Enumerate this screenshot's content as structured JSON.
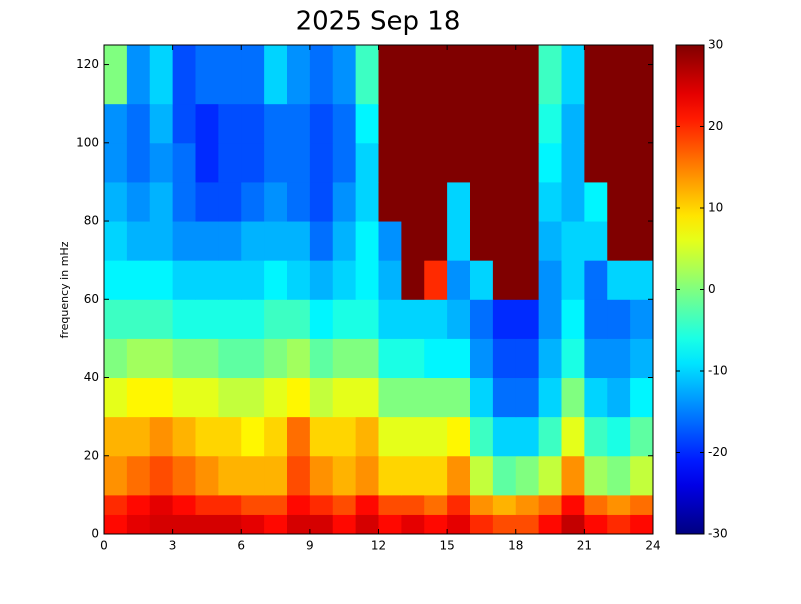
{
  "chart_data": {
    "type": "heatmap",
    "title": "2025 Sep 18",
    "ylabel": "frequency in mHz",
    "colormap": "jet",
    "x_bins": [
      0,
      1,
      2,
      3,
      4,
      5,
      6,
      7,
      8,
      9,
      10,
      11,
      12,
      13,
      14,
      15,
      16,
      17,
      18,
      19,
      20,
      21,
      22,
      23,
      24
    ],
    "y_bins": [
      0,
      5,
      10,
      20,
      30,
      40,
      50,
      60,
      70,
      80,
      90,
      100,
      110,
      125
    ],
    "z": [
      [
        22,
        24,
        25,
        25,
        25,
        25,
        24,
        22,
        25,
        25,
        22,
        25,
        22,
        24,
        22,
        24,
        20,
        18,
        18,
        22,
        26,
        22,
        20,
        22
      ],
      [
        20,
        22,
        24,
        22,
        20,
        20,
        18,
        18,
        22,
        20,
        18,
        22,
        18,
        18,
        16,
        20,
        14,
        12,
        14,
        16,
        22,
        16,
        14,
        16
      ],
      [
        14,
        16,
        18,
        16,
        14,
        12,
        12,
        12,
        18,
        14,
        12,
        14,
        10,
        10,
        10,
        14,
        4,
        -2,
        0,
        4,
        14,
        2,
        0,
        4
      ],
      [
        12,
        12,
        14,
        12,
        10,
        10,
        8,
        10,
        16,
        10,
        10,
        12,
        6,
        6,
        6,
        8,
        -4,
        -10,
        -10,
        -4,
        6,
        -4,
        -6,
        -2
      ],
      [
        6,
        8,
        8,
        6,
        6,
        4,
        4,
        6,
        8,
        4,
        6,
        6,
        0,
        0,
        0,
        0,
        -10,
        -16,
        -16,
        -10,
        0,
        -10,
        -12,
        -8
      ],
      [
        0,
        2,
        2,
        0,
        0,
        -2,
        -2,
        0,
        2,
        -2,
        0,
        0,
        -6,
        -6,
        -8,
        -8,
        -14,
        -18,
        -18,
        -12,
        -6,
        -14,
        -14,
        -12
      ],
      [
        -4,
        -4,
        -4,
        -6,
        -6,
        -6,
        -6,
        -4,
        -4,
        -8,
        -6,
        -6,
        -10,
        -10,
        -10,
        -12,
        -16,
        -20,
        -20,
        -14,
        -8,
        -16,
        -16,
        -14
      ],
      [
        -8,
        -8,
        -8,
        -10,
        -10,
        -10,
        -10,
        -8,
        -10,
        -12,
        -10,
        -8,
        -12,
        30,
        20,
        -14,
        -10,
        30,
        30,
        -14,
        -10,
        -16,
        -10,
        -10
      ],
      [
        -10,
        -12,
        -12,
        -14,
        -14,
        -14,
        -12,
        -12,
        -12,
        -16,
        -12,
        -8,
        -14,
        30,
        30,
        -10,
        30,
        30,
        30,
        -12,
        -10,
        -10,
        30,
        30
      ],
      [
        -12,
        -14,
        -12,
        -16,
        -18,
        -18,
        -16,
        -14,
        -16,
        -18,
        -14,
        -10,
        30,
        30,
        30,
        -10,
        30,
        30,
        30,
        -10,
        -12,
        -8,
        30,
        30
      ],
      [
        -14,
        -16,
        -14,
        -16,
        -20,
        -18,
        -18,
        -16,
        -16,
        -18,
        -16,
        -10,
        30,
        30,
        30,
        30,
        30,
        30,
        30,
        -8,
        -12,
        30,
        30,
        30
      ],
      [
        -14,
        -16,
        -12,
        -18,
        -20,
        -18,
        -18,
        -16,
        -16,
        -18,
        -16,
        -8,
        30,
        30,
        30,
        30,
        30,
        30,
        30,
        -6,
        -12,
        30,
        30,
        30
      ],
      [
        0,
        -14,
        -10,
        -18,
        -16,
        -16,
        -16,
        -10,
        -14,
        -16,
        -14,
        -4,
        30,
        30,
        30,
        30,
        30,
        30,
        30,
        -4,
        -10,
        30,
        30,
        30
      ]
    ],
    "xlim": [
      0,
      24
    ],
    "xticks": [
      0,
      3,
      6,
      9,
      12,
      15,
      18,
      21,
      24
    ],
    "ylim": [
      0,
      125
    ],
    "yticks": [
      0,
      20,
      40,
      60,
      80,
      100,
      120
    ],
    "clim": [
      -30,
      30
    ],
    "cticks": [
      -30,
      -20,
      -10,
      0,
      10,
      20,
      30
    ]
  }
}
